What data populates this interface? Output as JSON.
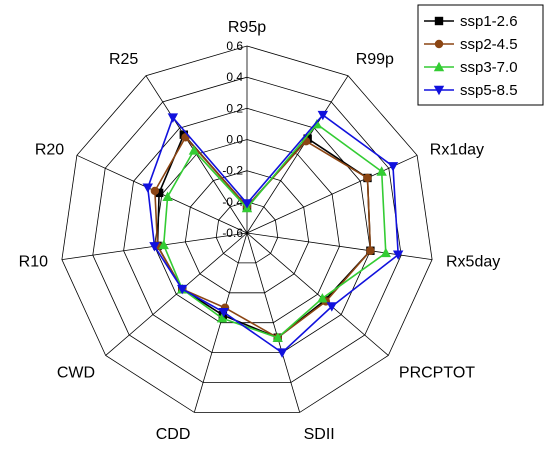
{
  "chart_data": {
    "type": "radar",
    "title": "",
    "axes": [
      "R95p",
      "R99p",
      "Rx1day",
      "Rx5day",
      "PRCPTOT",
      "SDII",
      "CDD",
      "CWD",
      "R10",
      "R20",
      "R25"
    ],
    "rlim": [
      -0.6,
      0.6
    ],
    "ticks": [
      "0.6",
      "0.4",
      "0.2",
      "0.0",
      "-0.2",
      "-0.4",
      "-0.6"
    ],
    "grid": true,
    "legend_position": "top-right",
    "series": [
      {
        "name": "ssp1-2.6",
        "color": "#000000",
        "marker": "square",
        "values": [
          -0.43,
          0.12,
          0.25,
          0.2,
          0.06,
          0.1,
          -0.05,
          -0.05,
          -0.02,
          0.02,
          0.15
        ]
      },
      {
        "name": "ssp2-4.5",
        "color": "#8B4513",
        "marker": "circle",
        "values": [
          -0.43,
          0.1,
          0.25,
          0.2,
          0.07,
          0.1,
          -0.1,
          -0.05,
          -0.02,
          0.05,
          0.13
        ]
      },
      {
        "name": "ssp3-7.0",
        "color": "#33CC33",
        "marker": "triangle-up",
        "values": [
          -0.44,
          0.23,
          0.35,
          0.3,
          0.04,
          0.1,
          -0.03,
          -0.05,
          -0.06,
          -0.04,
          0.03
        ]
      },
      {
        "name": "ssp5-8.5",
        "color": "#1111DD",
        "marker": "triangle-down",
        "values": [
          -0.41,
          0.3,
          0.43,
          0.38,
          0.12,
          0.2,
          -0.07,
          -0.05,
          0.0,
          0.1,
          0.28
        ]
      }
    ]
  }
}
